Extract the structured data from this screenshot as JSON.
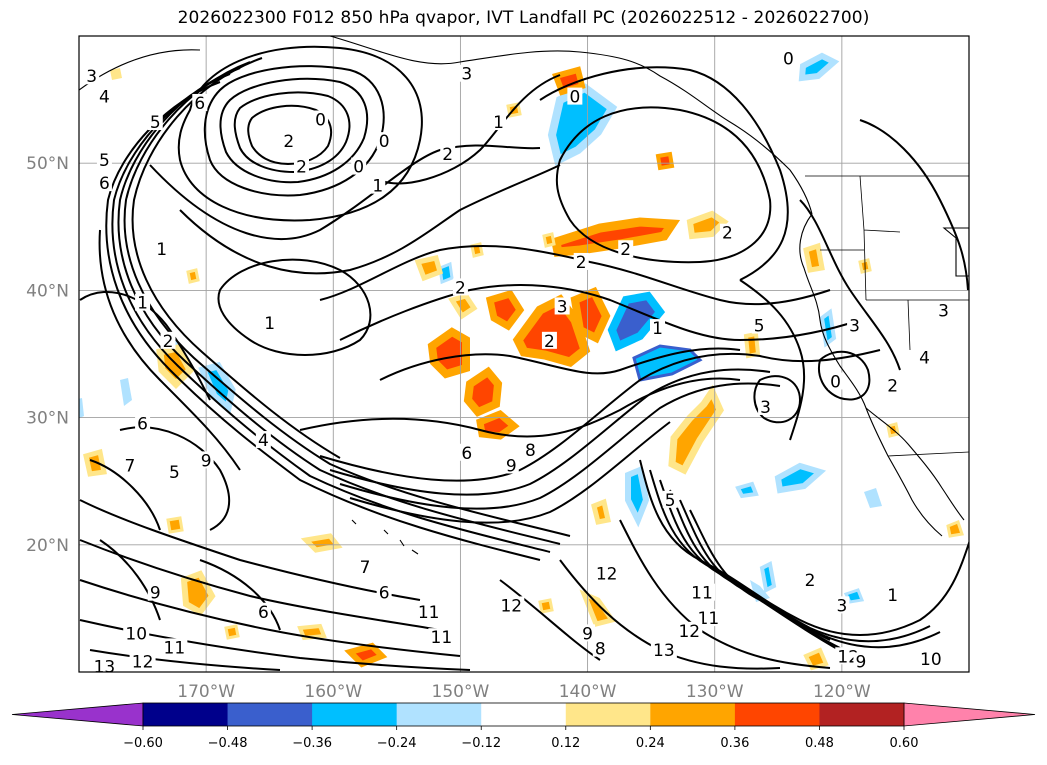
{
  "title": "2026022300 F012 850 hPa qvapor, IVT Landfall PC (2026022512 - 2026022700)",
  "map": {
    "lon_range": [
      -180,
      -110
    ],
    "lat_range": [
      10,
      60
    ],
    "lat_ticks": [
      {
        "value": 50,
        "label": "50°N"
      },
      {
        "value": 40,
        "label": "40°N"
      },
      {
        "value": 30,
        "label": "30°N"
      },
      {
        "value": 20,
        "label": "20°N"
      }
    ],
    "lon_ticks": [
      {
        "value": -170,
        "label": "170°W"
      },
      {
        "value": -160,
        "label": "160°W"
      },
      {
        "value": -150,
        "label": "150°W"
      },
      {
        "value": -140,
        "label": "140°W"
      },
      {
        "value": -130,
        "label": "130°W"
      },
      {
        "value": -120,
        "label": "120°W"
      }
    ],
    "grid": true,
    "contour_labels": [
      {
        "text": "0",
        "lon": -124.2,
        "lat": 58.0
      },
      {
        "text": "3",
        "lon": -149.5,
        "lat": 56.8
      },
      {
        "text": "0",
        "lon": -141.0,
        "lat": 55.0
      },
      {
        "text": "1",
        "lon": -147.0,
        "lat": 53.0
      },
      {
        "text": "2",
        "lon": -151.0,
        "lat": 50.5
      },
      {
        "text": "6",
        "lon": -170.5,
        "lat": 54.5
      },
      {
        "text": "5",
        "lon": -174.0,
        "lat": 53.0
      },
      {
        "text": "5",
        "lon": -178.0,
        "lat": 50.0
      },
      {
        "text": "6",
        "lon": -178.0,
        "lat": 48.2
      },
      {
        "text": "4",
        "lon": -178.0,
        "lat": 55.0
      },
      {
        "text": "3",
        "lon": -179.0,
        "lat": 56.6
      },
      {
        "text": "0",
        "lon": -161.0,
        "lat": 53.2
      },
      {
        "text": "0",
        "lon": -156.0,
        "lat": 51.5
      },
      {
        "text": "0",
        "lon": -158.0,
        "lat": 49.5
      },
      {
        "text": "1",
        "lon": -156.5,
        "lat": 48.0
      },
      {
        "text": "2",
        "lon": -162.5,
        "lat": 49.5
      },
      {
        "text": "2",
        "lon": -163.5,
        "lat": 51.5
      },
      {
        "text": "2",
        "lon": -129.0,
        "lat": 44.3
      },
      {
        "text": "2",
        "lon": -137.0,
        "lat": 43.0
      },
      {
        "text": "2",
        "lon": -140.5,
        "lat": 42.0
      },
      {
        "text": "2",
        "lon": -150.0,
        "lat": 40.0
      },
      {
        "text": "1",
        "lon": -165.0,
        "lat": 37.2
      },
      {
        "text": "3",
        "lon": -142.0,
        "lat": 38.5
      },
      {
        "text": "2",
        "lon": -143.0,
        "lat": 35.8
      },
      {
        "text": "1",
        "lon": -134.5,
        "lat": 36.8
      },
      {
        "text": "5",
        "lon": -126.5,
        "lat": 37.0
      },
      {
        "text": "3",
        "lon": -119.0,
        "lat": 37.0
      },
      {
        "text": "3",
        "lon": -112.0,
        "lat": 38.2
      },
      {
        "text": "4",
        "lon": -113.5,
        "lat": 34.5
      },
      {
        "text": "2",
        "lon": -116.0,
        "lat": 32.3
      },
      {
        "text": "0",
        "lon": -120.5,
        "lat": 32.6
      },
      {
        "text": "3",
        "lon": -126.0,
        "lat": 30.6
      },
      {
        "text": "1",
        "lon": -173.5,
        "lat": 43.0
      },
      {
        "text": "1",
        "lon": -175.0,
        "lat": 38.8
      },
      {
        "text": "2",
        "lon": -173.0,
        "lat": 35.8
      },
      {
        "text": "4",
        "lon": -165.5,
        "lat": 28.0
      },
      {
        "text": "6",
        "lon": -175.0,
        "lat": 29.3
      },
      {
        "text": "5",
        "lon": -172.5,
        "lat": 25.5
      },
      {
        "text": "9",
        "lon": -170.0,
        "lat": 26.4
      },
      {
        "text": "7",
        "lon": -176.0,
        "lat": 26.0
      },
      {
        "text": "6",
        "lon": -149.5,
        "lat": 27.0
      },
      {
        "text": "9",
        "lon": -146.0,
        "lat": 26.0
      },
      {
        "text": "8",
        "lon": -144.5,
        "lat": 27.2
      },
      {
        "text": "5",
        "lon": -133.5,
        "lat": 23.3
      },
      {
        "text": "7",
        "lon": -157.5,
        "lat": 18.0
      },
      {
        "text": "6",
        "lon": -156.0,
        "lat": 16.0
      },
      {
        "text": "6",
        "lon": -165.5,
        "lat": 14.5
      },
      {
        "text": "9",
        "lon": -174.0,
        "lat": 16.0
      },
      {
        "text": "12",
        "lon": -138.5,
        "lat": 17.5
      },
      {
        "text": "12",
        "lon": -146.0,
        "lat": 15.0
      },
      {
        "text": "11",
        "lon": -152.5,
        "lat": 14.5
      },
      {
        "text": "11",
        "lon": -151.5,
        "lat": 12.5
      },
      {
        "text": "11",
        "lon": -131.0,
        "lat": 16.0
      },
      {
        "text": "11",
        "lon": -130.5,
        "lat": 14.0
      },
      {
        "text": "12",
        "lon": -132.0,
        "lat": 13.0
      },
      {
        "text": "13",
        "lon": -134.0,
        "lat": 11.5
      },
      {
        "text": "9",
        "lon": -140.0,
        "lat": 12.8
      },
      {
        "text": "8",
        "lon": -139.0,
        "lat": 11.6
      },
      {
        "text": "2",
        "lon": -122.5,
        "lat": 17.0
      },
      {
        "text": "3",
        "lon": -120.0,
        "lat": 15.0
      },
      {
        "text": "1",
        "lon": -116.0,
        "lat": 15.8
      },
      {
        "text": "10",
        "lon": -113.0,
        "lat": 10.8
      },
      {
        "text": "10",
        "lon": -175.5,
        "lat": 12.8
      },
      {
        "text": "11",
        "lon": -172.5,
        "lat": 11.7
      },
      {
        "text": "12",
        "lon": -175.0,
        "lat": 10.6
      },
      {
        "text": "13",
        "lon": -178.0,
        "lat": 10.2
      },
      {
        "text": "12",
        "lon": -119.5,
        "lat": 11.0
      },
      {
        "text": "9",
        "lon": -118.5,
        "lat": 10.6
      }
    ]
  },
  "colorbar": {
    "levels": [
      "−0.60",
      "−0.48",
      "−0.36",
      "−0.24",
      "−0.12",
      "0.12",
      "0.24",
      "0.36",
      "0.48",
      "0.60"
    ],
    "colors": {
      "under": "#9932cc",
      "bins": [
        "#9932cc",
        "#00008b",
        "#3a5fcd",
        "#00bfff",
        "#b0e2ff",
        "#ffffff",
        "#ffe68a",
        "#ffa500",
        "#ff4500",
        "#b22222",
        "#ff82ab"
      ],
      "over": "#ff82ab"
    }
  }
}
